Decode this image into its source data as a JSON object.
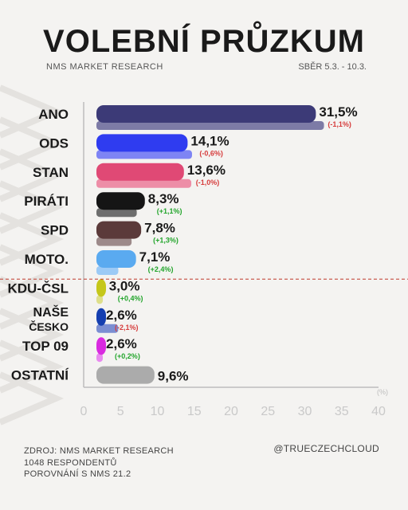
{
  "header": {
    "title": "VOLEBNÍ PRŮZKUM",
    "subtitle": "NMS MARKET RESEARCH",
    "period": "SBĚR 5.3. -  10.3."
  },
  "footer": {
    "source": "ZDROJ: NMS MARKET RESEARCH",
    "respondents": "1048 RESPONDENTŮ",
    "comparison": "POROVNÁNÍ S NMS 21.2",
    "handle": "@TRUECZECHCLOUD"
  },
  "colors": {
    "background": "#f4f3f1",
    "threshold_line": "#c0392b",
    "change_negative": "#d63c3c",
    "change_positive": "#22a52b"
  },
  "chart_data": {
    "type": "bar",
    "orientation": "horizontal",
    "unit_label": "(%)",
    "xlim": [
      0,
      40
    ],
    "xticks": [
      0,
      5,
      10,
      15,
      20,
      25,
      30,
      35,
      40
    ],
    "threshold": 5,
    "categories": [
      "ANO",
      "ODS",
      "STAN",
      "PIRÁTI",
      "SPD",
      "MOTO.",
      "KDU-ČSL",
      "NAŠE ČESKO",
      "TOP 09",
      "OSTATNÍ"
    ],
    "label_lines": [
      [
        "ANO"
      ],
      [
        "ODS"
      ],
      [
        "STAN"
      ],
      [
        "PIRÁTI"
      ],
      [
        "SPD"
      ],
      [
        "MOTO."
      ],
      [
        "KDU-ČSL"
      ],
      [
        "NAŠE",
        "ČESKO"
      ],
      [
        "TOP 09"
      ],
      [
        "OSTATNÍ"
      ]
    ],
    "series": [
      {
        "values": [
          31.5,
          14.1,
          13.6,
          8.3,
          7.8,
          7.1,
          3.0,
          2.6,
          2.6,
          9.6
        ],
        "labels": [
          "31,5%",
          "14,1%",
          "13,6%",
          "8,3%",
          "7,8%",
          "7,1%",
          "3,0%",
          "2,6%",
          "2,6%",
          "9,6%"
        ],
        "colors": [
          "#3c3a77",
          "#2f3cf0",
          "#e04975",
          "#151515",
          "#5b3a3a",
          "#5aaaf0",
          "#c5c71a",
          "#153fb0",
          "#d92ae0",
          "#ababab"
        ]
      },
      {
        "values": [
          32.6,
          14.7,
          14.6,
          7.2,
          6.5,
          4.7,
          2.6,
          4.7,
          2.4,
          null
        ],
        "colors": [
          "#7d7ba6",
          "#7e84f4",
          "#ed8ea7",
          "#6e6e6e",
          "#9d8a8a",
          "#9ccaf6",
          "#dedf8a",
          "#7b8ed2",
          "#e98af0",
          null
        ]
      }
    ],
    "changes": [
      "(-1,1%)",
      "(-0,6%)",
      "(-1,0%)",
      "(+1,1%)",
      "(+1,3%)",
      "(+2,4%)",
      "(+0,4%)",
      "(-2,1%)",
      "(+0,2%)",
      ""
    ],
    "change_signs": [
      "neg",
      "neg",
      "neg",
      "pos",
      "pos",
      "pos",
      "pos",
      "neg",
      "pos",
      ""
    ]
  }
}
